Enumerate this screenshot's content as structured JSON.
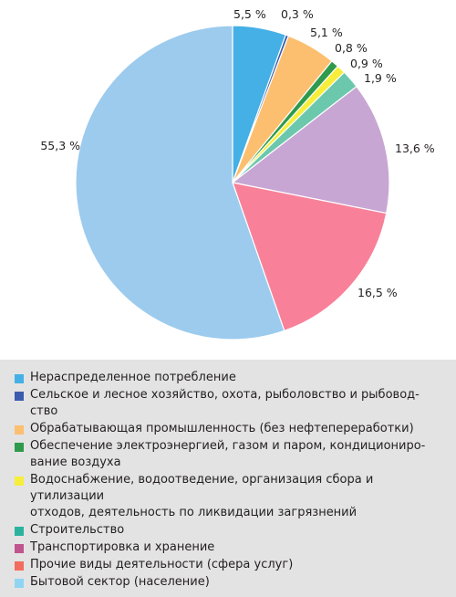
{
  "chart_data": {
    "type": "pie",
    "start_angle_deg": 0,
    "direction": "clockwise",
    "slices": [
      {
        "label": "Нераспределенное потребление",
        "value": 5.5,
        "value_text": "5,5 %",
        "color": "#45b0e5"
      },
      {
        "label": "Сельское и лесное хозяйство, охота, рыболовство и рыбоводство",
        "value": 0.3,
        "value_text": "0,3 %",
        "color": "#3b5cad"
      },
      {
        "label": "Обрабатывающая промышленность (без нефтепереработки)",
        "value": 5.1,
        "value_text": "5,1 %",
        "color": "#fcbf70"
      },
      {
        "label": "Обеспечение электроэнергией, газом и паром, кондиционирование воздуха",
        "value": 0.8,
        "value_text": "0,8 %",
        "color": "#2f9a4c"
      },
      {
        "label": "Водоснабжение, водоотведение, организация сбора и утилизации отходов, деятельность по ликвидации загрязнений",
        "value": 0.9,
        "value_text": "0,9 %",
        "color": "#f6ee3a"
      },
      {
        "label": "Строительство",
        "value": 1.9,
        "value_text": "1,9 %",
        "color": "#6cc8ad"
      },
      {
        "label": "Транспортировка и хранение",
        "value": 13.6,
        "value_text": "13,6 %",
        "color": "#c8a6d3"
      },
      {
        "label": "Прочие виды деятельности (сфера услуг)",
        "value": 16.5,
        "value_text": "16,5 %",
        "color": "#f88199"
      },
      {
        "label": "Бытовой сектор (население)",
        "value": 55.3,
        "value_text": "55,3 %",
        "color": "#9ccbee"
      }
    ]
  },
  "legend": {
    "background": "#e3e3e3",
    "items": [
      {
        "lines": [
          "Нераспределенное потребление"
        ],
        "color": "#45b0e5"
      },
      {
        "lines": [
          "Сельское и лесное хозяйство, охота, рыболовство и рыбовод-",
          "ство"
        ],
        "color": "#3b5cad"
      },
      {
        "lines": [
          "Обрабатывающая промышленность (без нефтепереработки)"
        ],
        "color": "#fcbf70"
      },
      {
        "lines": [
          "Обеспечение электроэнергией, газом и паром, кондициониро-",
          "вание воздуха"
        ],
        "color": "#2f9a4c"
      },
      {
        "lines": [
          "Водоснабжение, водоотведение, организация сбора и утилизации",
          "отходов, деятельность по ликвидации загрязнений"
        ],
        "color": "#f6ee3a"
      },
      {
        "lines": [
          "Строительство"
        ],
        "color": "#2bb3a0"
      },
      {
        "lines": [
          "Транспортировка и хранение"
        ],
        "color": "#c0548f"
      },
      {
        "lines": [
          "Прочие виды деятельности (сфера услуг)"
        ],
        "color": "#f26c5f"
      },
      {
        "lines": [
          "Бытовой сектор (население)"
        ],
        "color": "#8fd5f3"
      }
    ]
  }
}
